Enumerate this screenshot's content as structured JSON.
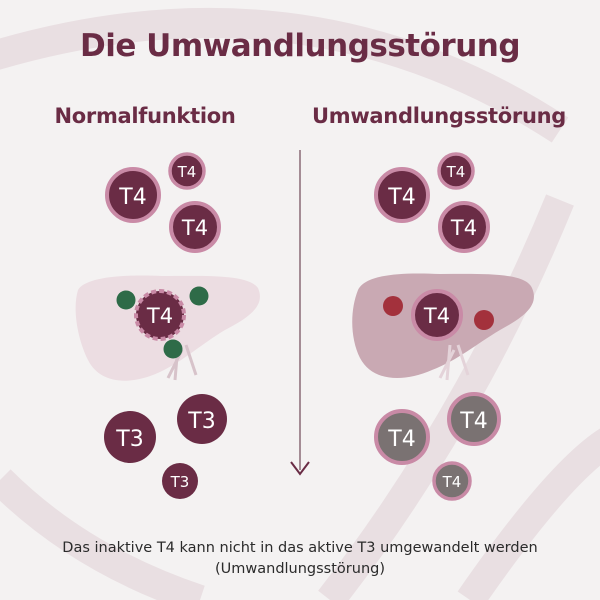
{
  "title": "Die Umwandlungsstörung",
  "left_panel": {
    "heading": "Normalfunktion",
    "top_hormones": [
      "T4",
      "T4",
      "T4"
    ],
    "liver_hormone": "T4",
    "bottom_hormones": [
      "T3",
      "T3",
      "T3"
    ]
  },
  "right_panel": {
    "heading": "Umwandlungsstörung",
    "top_hormones": [
      "T4",
      "T4",
      "T4"
    ],
    "liver_hormone": "T4",
    "bottom_hormones": [
      "T4",
      "T4",
      "T4"
    ]
  },
  "caption": {
    "line1": "Das inaktive T4 kann nicht in das aktive T3 umgewandelt werden",
    "line2": "(Umwandlungsstörung)"
  },
  "colors": {
    "primary": "#6a2c45",
    "ring": "#c98aa6",
    "liver_normal": "#ecdde2",
    "liver_disorder": "#c9a9b3",
    "dot_green": "#2e6b48",
    "dot_red": "#a3313c",
    "converted_gray": "#7a7272"
  }
}
